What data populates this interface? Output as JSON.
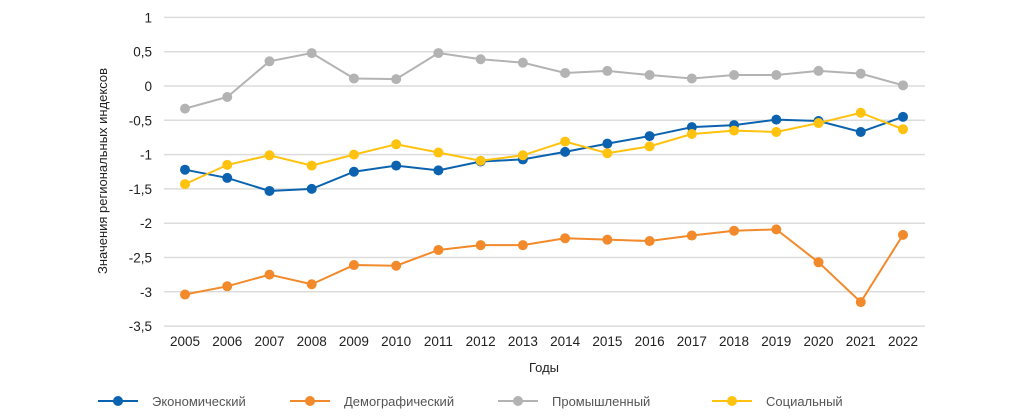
{
  "chart_data": {
    "type": "line",
    "xlabel": "Годы",
    "ylabel": "Значения региональных индексов",
    "ylim": [
      -3.5,
      1
    ],
    "yticks": [
      "1",
      "0,5",
      "0",
      "-0,5",
      "-1",
      "-1,5",
      "-2",
      "-2,5",
      "-3",
      "-3,5"
    ],
    "ytick_values": [
      1,
      0.5,
      0,
      -0.5,
      -1,
      -1.5,
      -2,
      -2.5,
      -3,
      -3.5
    ],
    "grid": true,
    "legend_position": "bottom",
    "categories": [
      "2005",
      "2006",
      "2007",
      "2008",
      "2009",
      "2010",
      "2011",
      "2012",
      "2013",
      "2014",
      "2015",
      "2016",
      "2017",
      "2018",
      "2019",
      "2020",
      "2021",
      "2022"
    ],
    "series": [
      {
        "name": "Экономический",
        "color": "#0b63b0",
        "values": [
          -1.22,
          -1.34,
          -1.53,
          -1.5,
          -1.25,
          -1.16,
          -1.23,
          -1.1,
          -1.07,
          -0.96,
          -0.84,
          -0.73,
          -0.6,
          -0.57,
          -0.49,
          -0.51,
          -0.67,
          -0.45
        ]
      },
      {
        "name": "Демографический",
        "color": "#f28a2b",
        "values": [
          -3.04,
          -2.92,
          -2.75,
          -2.89,
          -2.61,
          -2.62,
          -2.39,
          -2.32,
          -2.32,
          -2.22,
          -2.24,
          -2.26,
          -2.18,
          -2.11,
          -2.09,
          -2.57,
          -3.15,
          -2.17
        ]
      },
      {
        "name": "Промышленный",
        "color": "#b3b3b3",
        "values": [
          -0.33,
          -0.16,
          0.36,
          0.48,
          0.11,
          0.1,
          0.48,
          0.39,
          0.34,
          0.19,
          0.22,
          0.16,
          0.11,
          0.16,
          0.16,
          0.22,
          0.18,
          0.01
        ]
      },
      {
        "name": "Социальный",
        "color": "#ffc20e",
        "values": [
          -1.43,
          -1.15,
          -1.01,
          -1.16,
          -1.0,
          -0.85,
          -0.97,
          -1.09,
          -1.01,
          -0.81,
          -0.98,
          -0.88,
          -0.7,
          -0.65,
          -0.67,
          -0.54,
          -0.39,
          -0.63
        ]
      }
    ]
  }
}
